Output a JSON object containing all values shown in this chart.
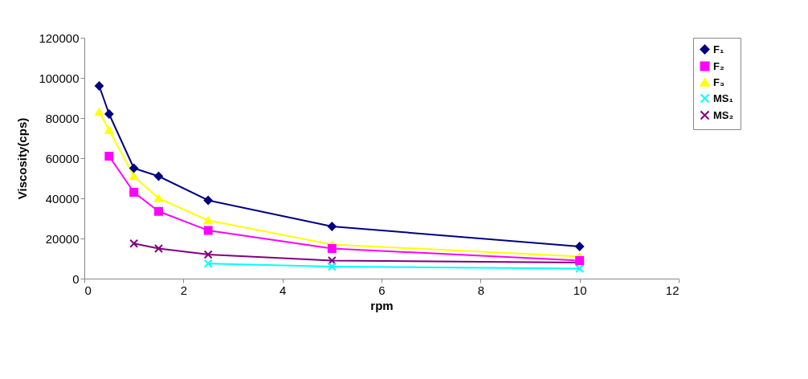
{
  "chart_data": {
    "type": "line",
    "xlabel": "rpm",
    "ylabel": "Viscosity(cps)",
    "xlim": [
      0,
      12
    ],
    "xticks": [
      0,
      2,
      4,
      6,
      8,
      10,
      12
    ],
    "ylim": [
      0,
      120000
    ],
    "yticks": [
      0,
      20000,
      40000,
      60000,
      80000,
      100000,
      120000
    ],
    "grid": false,
    "legend": "right",
    "line_style": "solid",
    "series": [
      {
        "name": "F₁",
        "color": "#000080",
        "marker": "diamond",
        "x": [
          0.3,
          0.5,
          1,
          1.5,
          2.5,
          5,
          10
        ],
        "values": [
          96000,
          82000,
          55000,
          51000,
          39000,
          26000,
          16000
        ]
      },
      {
        "name": "F₂",
        "color": "#ff00ff",
        "marker": "square",
        "x": [
          0.5,
          1,
          1.5,
          2.5,
          5,
          10
        ],
        "values": [
          61000,
          43000,
          33500,
          24000,
          15000,
          9000
        ]
      },
      {
        "name": "F₃",
        "color": "#ffff00",
        "marker": "triangle",
        "x": [
          0.3,
          0.5,
          1,
          1.5,
          2.5,
          5,
          10
        ],
        "values": [
          83000,
          74000,
          51000,
          40000,
          29000,
          17000,
          11000
        ]
      },
      {
        "name": "MS₁",
        "color": "#00ffff",
        "marker": "cross",
        "x": [
          2.5,
          5,
          10
        ],
        "values": [
          7500,
          6000,
          5000
        ]
      },
      {
        "name": "MS₂",
        "color": "#800080",
        "marker": "cross",
        "x": [
          1,
          1.5,
          2.5,
          5,
          10
        ],
        "values": [
          17500,
          15000,
          12000,
          9000,
          8000
        ]
      }
    ]
  }
}
